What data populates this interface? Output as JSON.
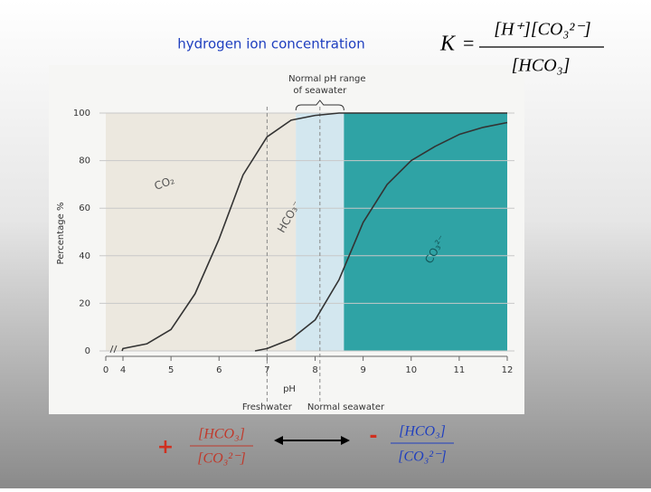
{
  "slide": {
    "title": "hydrogen ion concentration",
    "equation": {
      "lhs": "K",
      "eq": "=",
      "numerator": "[H⁺][CO₃²⁻]",
      "denominator": "[HCO₃]"
    },
    "left": {
      "sign": "+",
      "numerator": "[HCO₃]",
      "denominator": "[CO₃²⁻]"
    },
    "right": {
      "sign": "-",
      "numerator": "[HCO₃]",
      "denominator": "[CO₃²⁻]"
    }
  },
  "chart_data": {
    "type": "line",
    "xlabel": "pH",
    "ylabel": "Percentage %",
    "xlim": [
      0,
      12
    ],
    "xbreak": [
      0,
      4
    ],
    "xticks": [
      0,
      4,
      5,
      6,
      7,
      8,
      9,
      10,
      11,
      12
    ],
    "ylim": [
      0,
      100
    ],
    "yticks": [
      0,
      20,
      40,
      60,
      80,
      100
    ],
    "grid": true,
    "regions": [
      {
        "xlim": [
          0,
          7.6
        ],
        "color": "#ece8df"
      },
      {
        "xlim": [
          7.6,
          8.6
        ],
        "color": "#d3e7ef",
        "label": [
          "Normal pH range",
          "of seawater"
        ]
      },
      {
        "xlim": [
          8.6,
          12
        ],
        "color": "#2fa3a5"
      }
    ],
    "vlines": [
      {
        "x": 7,
        "label": "Freshwater"
      },
      {
        "x": 8.1,
        "label": "Normal seawater"
      }
    ],
    "series": [
      {
        "color": "#333333",
        "x": [
          3.8,
          4,
          4.5,
          5,
          5.5,
          6,
          6.5,
          7,
          7.5,
          8,
          8.5,
          12
        ],
        "values": [
          0,
          1,
          3,
          9,
          24,
          47,
          74,
          90,
          97,
          99,
          100,
          100
        ]
      },
      {
        "color": "#333333",
        "x": [
          6.75,
          7,
          7.5,
          8,
          8.5,
          9,
          9.5,
          10,
          10.5,
          11,
          11.5,
          12
        ],
        "values": [
          0,
          1,
          5,
          13,
          30,
          54,
          70,
          80,
          86,
          91,
          94,
          96
        ]
      }
    ],
    "annotations": [
      "CO₂",
      "HCO₃⁻",
      "CO₃²⁻"
    ]
  }
}
